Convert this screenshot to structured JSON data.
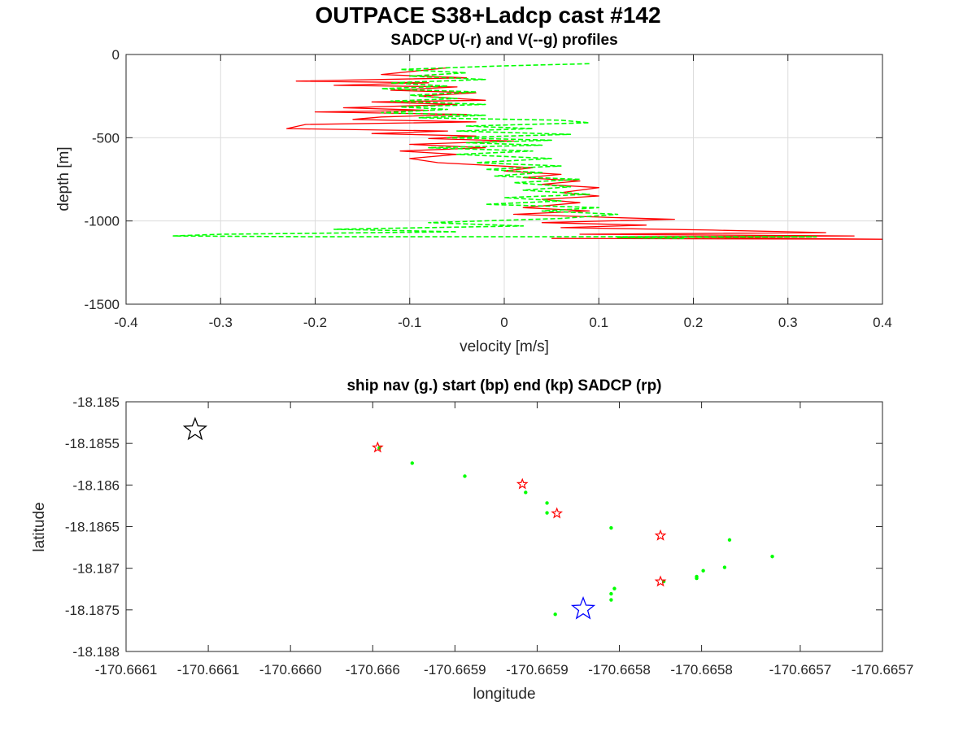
{
  "figure": {
    "title": "OUTPACE S38+Ladcp cast #142"
  },
  "chart_data": [
    {
      "type": "line",
      "title": "SADCP U(-r) and V(--g) profiles",
      "xlabel": "velocity [m/s]",
      "ylabel": "depth [m]",
      "xlim": [
        -0.4,
        0.4
      ],
      "ylim": [
        -1500,
        0
      ],
      "xticks": [
        -0.4,
        -0.3,
        -0.2,
        -0.1,
        0,
        0.1,
        0.2,
        0.3,
        0.4
      ],
      "xtick_labels": [
        "-0.4",
        "-0.3",
        "-0.2",
        "-0.1",
        "0",
        "0.1",
        "0.2",
        "0.3",
        "0.4"
      ],
      "yticks": [
        0,
        -500,
        -1000,
        -1500
      ],
      "ytick_labels": [
        "0",
        "-500",
        "-1000",
        "-1500"
      ],
      "grid": true,
      "series": [
        {
          "color": "#ff0000",
          "style": "solid",
          "points": [
            [
              -0.06,
              -80
            ],
            [
              -0.13,
              -120
            ],
            [
              -0.04,
              -140
            ],
            [
              -0.22,
              -160
            ],
            [
              -0.08,
              -170
            ],
            [
              -0.18,
              -185
            ],
            [
              -0.05,
              -195
            ],
            [
              -0.12,
              -215
            ],
            [
              -0.03,
              -230
            ],
            [
              -0.09,
              -250
            ],
            [
              -0.02,
              -275
            ],
            [
              -0.14,
              -285
            ],
            [
              -0.05,
              -300
            ],
            [
              -0.17,
              -320
            ],
            [
              -0.08,
              -335
            ],
            [
              -0.2,
              -345
            ],
            [
              -0.04,
              -360
            ],
            [
              -0.13,
              -375
            ],
            [
              -0.16,
              -390
            ],
            [
              -0.03,
              -405
            ],
            [
              -0.21,
              -420
            ],
            [
              -0.23,
              -445
            ],
            [
              -0.06,
              -460
            ],
            [
              -0.14,
              -475
            ],
            [
              -0.03,
              -490
            ],
            [
              -0.08,
              -505
            ],
            [
              0.01,
              -520
            ],
            [
              -0.1,
              -540
            ],
            [
              -0.02,
              -560
            ],
            [
              -0.11,
              -580
            ],
            [
              -0.05,
              -600
            ],
            [
              -0.1,
              -625
            ],
            [
              -0.07,
              -650
            ],
            [
              0.03,
              -680
            ],
            [
              0.0,
              -700
            ],
            [
              0.06,
              -720
            ],
            [
              0.02,
              -740
            ],
            [
              0.08,
              -760
            ],
            [
              0.04,
              -780
            ],
            [
              0.1,
              -800
            ],
            [
              0.06,
              -830
            ],
            [
              0.1,
              -850
            ],
            [
              0.04,
              -870
            ],
            [
              0.08,
              -890
            ],
            [
              0.02,
              -920
            ],
            [
              0.09,
              -940
            ],
            [
              0.01,
              -960
            ],
            [
              0.12,
              -980
            ],
            [
              0.18,
              -990
            ],
            [
              0.04,
              -1010
            ],
            [
              0.15,
              -1025
            ],
            [
              0.06,
              -1040
            ],
            [
              0.22,
              -1055
            ],
            [
              0.34,
              -1070
            ],
            [
              0.08,
              -1080
            ],
            [
              0.37,
              -1090
            ],
            [
              0.12,
              -1095
            ],
            [
              0.4,
              -1110
            ],
            [
              0.05,
              -1105
            ]
          ]
        },
        {
          "color": "#00ff00",
          "style": "dashed",
          "points": [
            [
              0.09,
              -55
            ],
            [
              -0.01,
              -70
            ],
            [
              -0.11,
              -90
            ],
            [
              -0.04,
              -110
            ],
            [
              -0.1,
              -130
            ],
            [
              -0.02,
              -150
            ],
            [
              -0.12,
              -170
            ],
            [
              -0.06,
              -190
            ],
            [
              -0.13,
              -205
            ],
            [
              -0.03,
              -225
            ],
            [
              -0.1,
              -245
            ],
            [
              -0.05,
              -265
            ],
            [
              -0.12,
              -280
            ],
            [
              -0.02,
              -300
            ],
            [
              -0.11,
              -315
            ],
            [
              -0.06,
              -330
            ],
            [
              -0.13,
              -350
            ],
            [
              -0.02,
              -365
            ],
            [
              -0.09,
              -380
            ],
            [
              0.06,
              -395
            ],
            [
              0.09,
              -410
            ],
            [
              -0.04,
              -430
            ],
            [
              0.03,
              -445
            ],
            [
              -0.05,
              -460
            ],
            [
              0.07,
              -480
            ],
            [
              -0.06,
              -500
            ],
            [
              0.05,
              -515
            ],
            [
              -0.04,
              -530
            ],
            [
              0.04,
              -545
            ],
            [
              -0.08,
              -560
            ],
            [
              0.03,
              -580
            ],
            [
              -0.05,
              -600
            ],
            [
              0.05,
              -625
            ],
            [
              -0.03,
              -650
            ],
            [
              0.06,
              -670
            ],
            [
              -0.02,
              -690
            ],
            [
              0.04,
              -710
            ],
            [
              -0.01,
              -730
            ],
            [
              0.08,
              -750
            ],
            [
              0.01,
              -770
            ],
            [
              0.07,
              -795
            ],
            [
              0.02,
              -815
            ],
            [
              0.09,
              -840
            ],
            [
              0.0,
              -860
            ],
            [
              0.06,
              -880
            ],
            [
              -0.02,
              -900
            ],
            [
              0.1,
              -920
            ],
            [
              0.04,
              -940
            ],
            [
              0.12,
              -960
            ],
            [
              0.06,
              -985
            ],
            [
              -0.08,
              -1010
            ],
            [
              0.02,
              -1030
            ],
            [
              -0.18,
              -1050
            ],
            [
              -0.05,
              -1065
            ],
            [
              -0.3,
              -1080
            ],
            [
              -0.35,
              -1090
            ],
            [
              -0.2,
              -1095
            ],
            [
              0.33,
              -1095
            ],
            [
              0.12,
              -1100
            ],
            [
              0.19,
              -1105
            ]
          ]
        }
      ]
    },
    {
      "type": "scatter",
      "title": "ship nav (g.) start (bp) end (kp) SADCP (rp)",
      "xlabel": "longitude",
      "ylabel": "latitude",
      "xlim": [
        -170.66612,
        -170.66566
      ],
      "ylim": [
        -18.188,
        -18.185
      ],
      "xticks": [
        -170.66612,
        -170.66607,
        -170.66602,
        -170.66597,
        -170.66592,
        -170.66587,
        -170.66582,
        -170.66577,
        -170.66571,
        -170.66566
      ],
      "xtick_labels": [
        "-170.6661",
        "-170.6661",
        "-170.6660",
        "-170.666",
        "-170.6659",
        "-170.6659",
        "-170.6658",
        "-170.6658",
        "-170.6657",
        "-170.6657"
      ],
      "yticks": [
        -18.185,
        -18.1855,
        -18.186,
        -18.1865,
        -18.187,
        -18.1875,
        -18.188
      ],
      "ytick_labels": [
        "-18.185",
        "-18.1855",
        "-18.186",
        "-18.1865",
        "-18.187",
        "-18.1875",
        "-18.188"
      ],
      "grid": false,
      "ship_nav": {
        "color": "#00ff00",
        "points": [
          [
            -170.665966,
            -18.185555
          ],
          [
            -170.665946,
            -18.185737
          ],
          [
            -170.665914,
            -18.185894
          ],
          [
            -170.665877,
            -18.186089
          ],
          [
            -170.665864,
            -18.186216
          ],
          [
            -170.665864,
            -18.186334
          ],
          [
            -170.665859,
            -18.187554
          ],
          [
            -170.665825,
            -18.186515
          ],
          [
            -170.665825,
            -18.187307
          ],
          [
            -170.665825,
            -18.18738
          ],
          [
            -170.665823,
            -18.187244
          ],
          [
            -170.665793,
            -18.187159
          ],
          [
            -170.665773,
            -18.1871
          ],
          [
            -170.665773,
            -18.187121
          ],
          [
            -170.665769,
            -18.18703
          ],
          [
            -170.665756,
            -18.186989
          ],
          [
            -170.665753,
            -18.18666
          ],
          [
            -170.665727,
            -18.186859
          ]
        ]
      },
      "start": {
        "color": "#0000ff",
        "point": [
          -170.665842,
          -18.18749
        ]
      },
      "end": {
        "color": "#000000",
        "point": [
          -170.666078,
          -18.185336
        ]
      },
      "sadcp": {
        "color": "#ff0000",
        "points": [
          [
            -170.665967,
            -18.18555
          ],
          [
            -170.665879,
            -18.18599
          ],
          [
            -170.665858,
            -18.186341
          ],
          [
            -170.665795,
            -18.186608
          ],
          [
            -170.665795,
            -18.18716
          ]
        ]
      }
    }
  ]
}
